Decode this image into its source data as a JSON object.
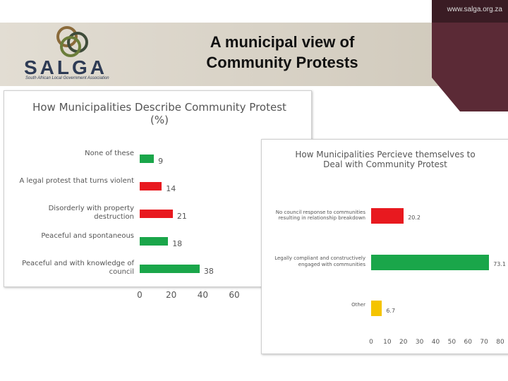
{
  "slide": {
    "url": "www.salga.org.za",
    "title": "A municipal view of Community Protests",
    "logo_text": "SALGA",
    "logo_subtext": "South African Local Government Association"
  },
  "chart_data": [
    {
      "type": "hbar",
      "title": "How Municipalities Describe Community Protest (%)",
      "categories": [
        "None of these",
        "A legal protest that turns violent",
        "Disorderly with property destruction",
        "Peaceful and spontaneous",
        "Peaceful and with knowledge of council"
      ],
      "values": [
        9,
        14,
        21,
        18,
        38
      ],
      "colors": [
        "#1aa64a",
        "#e8191f",
        "#e8191f",
        "#1aa64a",
        "#1aa64a"
      ],
      "xlim": [
        0,
        60
      ],
      "xticks": [
        0,
        20,
        40,
        60
      ]
    },
    {
      "type": "hbar",
      "title": "How Municipalities Percieve themselves to Deal with Community Protest",
      "categories": [
        "No council response to communities resulting in relationship breakdown",
        "Legally compliant and constructively engaged with communities",
        "Other"
      ],
      "values": [
        20.2,
        73.1,
        6.7
      ],
      "colors": [
        "#e8191f",
        "#1aa64a",
        "#f5c400"
      ],
      "xlim": [
        0,
        80
      ],
      "xticks": [
        0,
        10,
        20,
        30,
        40,
        50,
        60,
        70,
        80
      ]
    }
  ]
}
